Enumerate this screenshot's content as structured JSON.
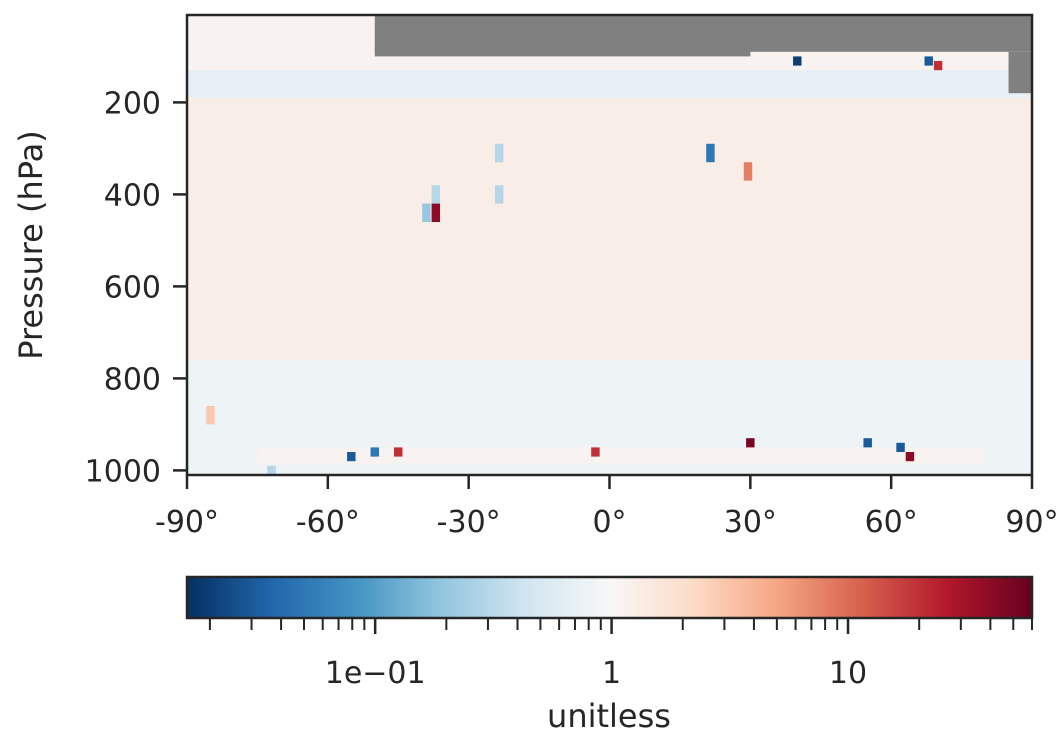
{
  "chart_data": [
    {
      "type": "heatmap",
      "title": "",
      "xlabel": "",
      "ylabel": "Pressure (hPa)",
      "x_ticks": [
        {
          "value": -90,
          "label": "-90°"
        },
        {
          "value": -60,
          "label": "-60°"
        },
        {
          "value": -30,
          "label": "-30°"
        },
        {
          "value": 0,
          "label": "0°"
        },
        {
          "value": 30,
          "label": "30°"
        },
        {
          "value": 60,
          "label": "60°"
        },
        {
          "value": 90,
          "label": "90°"
        }
      ],
      "y_ticks": [
        {
          "value": 200,
          "label": "200"
        },
        {
          "value": 400,
          "label": "400"
        },
        {
          "value": 600,
          "label": "600"
        },
        {
          "value": 800,
          "label": "800"
        },
        {
          "value": 1000,
          "label": "1000"
        }
      ],
      "xlim": [
        -90,
        90
      ],
      "ylim": [
        1010,
        10
      ],
      "y_inverted": true,
      "missing_color": "#808080",
      "colormap": "RdBu_r",
      "color_scale": "log",
      "color_range": [
        0.016,
        60
      ],
      "regions": {
        "upper_band": {
          "lat": [
            -90,
            90
          ],
          "p": [
            130,
            190
          ],
          "value": 0.7
        },
        "mid_troposphere": {
          "lat": [
            -90,
            90
          ],
          "p": [
            190,
            760
          ],
          "value": 1.3
        },
        "lower_troposphere": {
          "lat": [
            -90,
            90
          ],
          "p": [
            760,
            1010
          ],
          "value": 0.8
        },
        "near_surface_band": {
          "lat": [
            -75,
            80
          ],
          "p": [
            950,
            985
          ],
          "value": 1.1
        }
      },
      "features": [
        {
          "lat": -23.5,
          "p": [
            290,
            330
          ],
          "value": 0.3
        },
        {
          "lat": -23.5,
          "p": [
            380,
            420
          ],
          "value": 0.3
        },
        {
          "lat": 21.5,
          "p": [
            290,
            330
          ],
          "value": 0.05
        },
        {
          "lat": 29.5,
          "p": [
            330,
            370
          ],
          "value": 8
        },
        {
          "lat": -37,
          "p": [
            380,
            420
          ],
          "value": 0.3
        },
        {
          "lat": -37,
          "p": [
            420,
            460
          ],
          "value": 40
        },
        {
          "lat": -39,
          "p": [
            420,
            460
          ],
          "value": 0.2
        },
        {
          "lat": -3,
          "p": [
            950,
            970
          ],
          "value": 20
        },
        {
          "lat": 30,
          "p": [
            930,
            950
          ],
          "value": 50
        },
        {
          "lat": 55,
          "p": [
            930,
            950
          ],
          "value": 0.03
        },
        {
          "lat": 62,
          "p": [
            940,
            960
          ],
          "value": 0.03
        },
        {
          "lat": 64,
          "p": [
            960,
            980
          ],
          "value": 40
        },
        {
          "lat": -55,
          "p": [
            960,
            980
          ],
          "value": 0.03
        },
        {
          "lat": -50,
          "p": [
            950,
            970
          ],
          "value": 0.05
        },
        {
          "lat": -45,
          "p": [
            950,
            970
          ],
          "value": 20
        },
        {
          "lat": 40,
          "p": [
            100,
            120
          ],
          "value": 0.02
        },
        {
          "lat": 68,
          "p": [
            100,
            120
          ],
          "value": 0.03
        },
        {
          "lat": 70,
          "p": [
            110,
            130
          ],
          "value": 20
        },
        {
          "lat": -85,
          "p": [
            860,
            900
          ],
          "value": 3
        },
        {
          "lat": -72,
          "p": [
            990,
            1010
          ],
          "value": 0.3
        }
      ],
      "missing_regions": [
        {
          "lat": [
            -50,
            90
          ],
          "p": [
            10,
            90
          ]
        },
        {
          "lat": [
            -50,
            30
          ],
          "p": [
            80,
            100
          ]
        },
        {
          "lat": [
            85,
            90
          ],
          "p": [
            90,
            180
          ]
        }
      ]
    },
    {
      "type": "colorbar",
      "colormap": "RdBu_r",
      "scale": "log",
      "range": [
        0.016,
        60
      ],
      "tick_labels": [
        {
          "value": 0.1,
          "label": "1e−01"
        },
        {
          "value": 1,
          "label": "1"
        },
        {
          "value": 10,
          "label": "10"
        }
      ],
      "label": "unitless"
    }
  ]
}
